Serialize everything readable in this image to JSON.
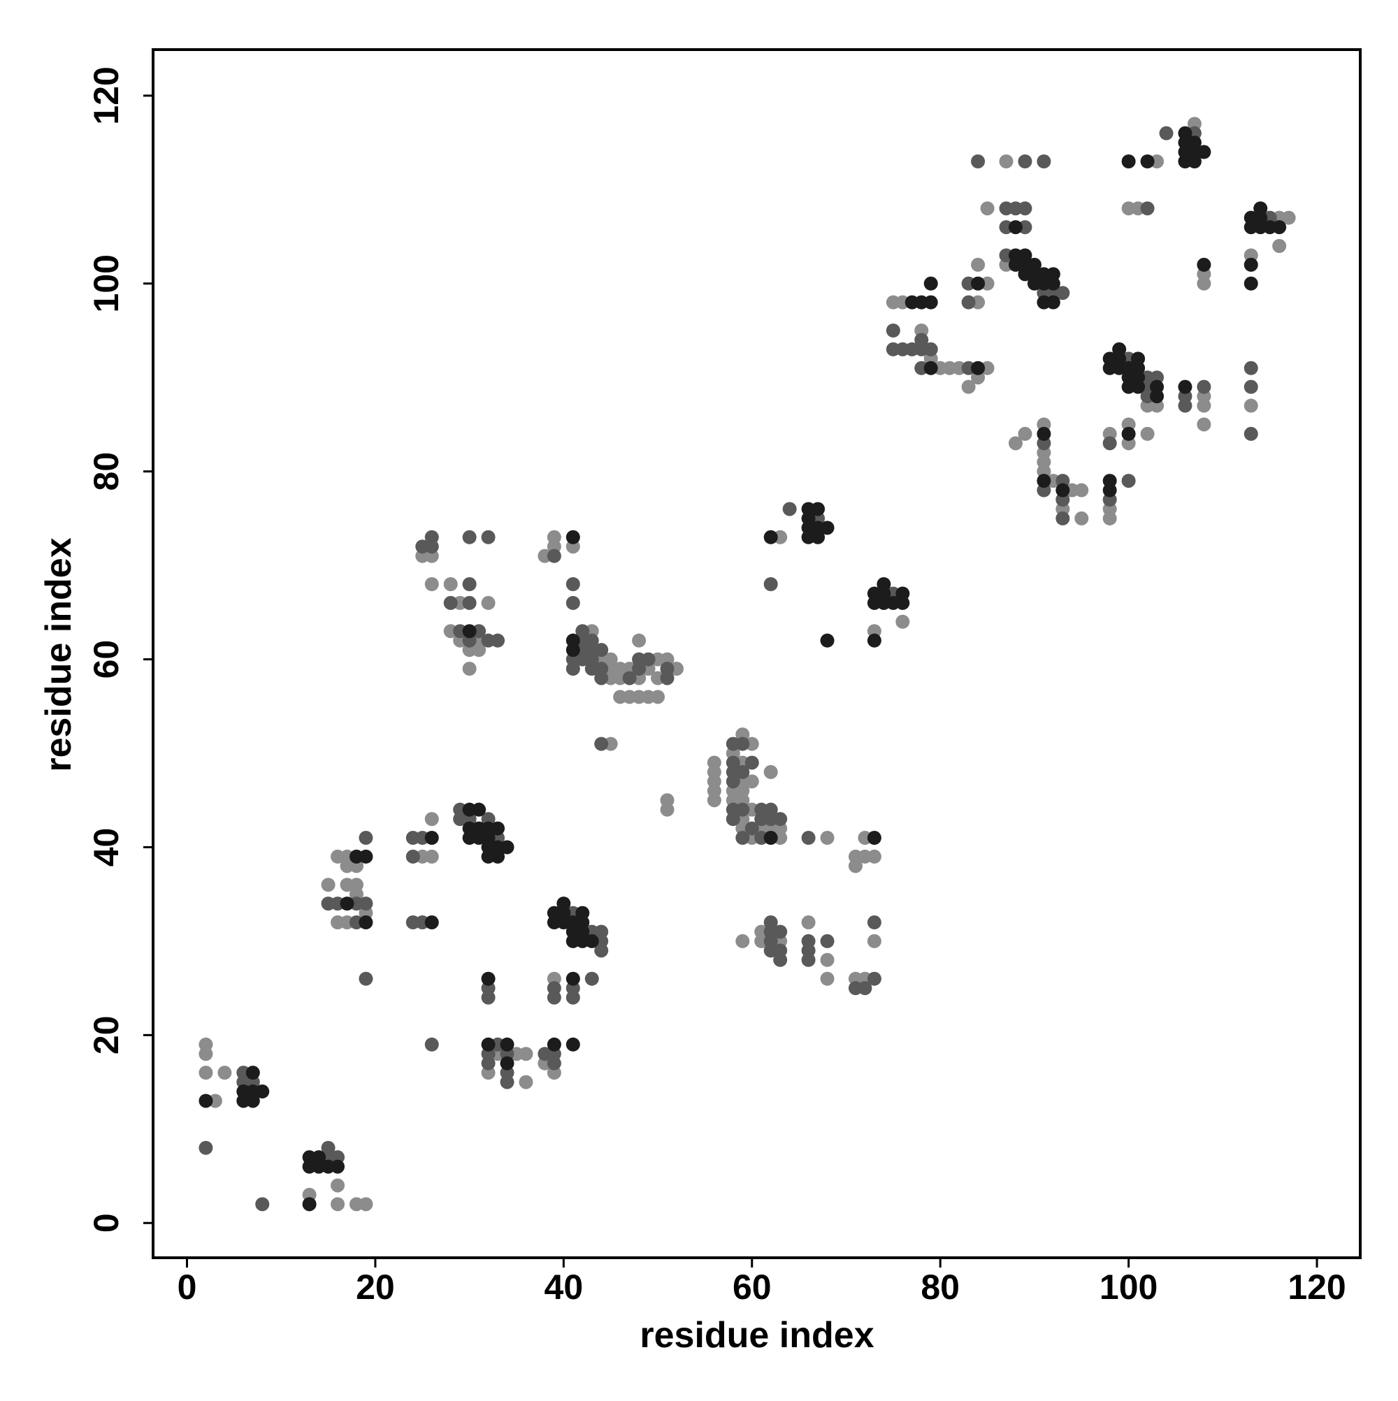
{
  "chart_data": {
    "type": "scatter",
    "x_label": "residue index",
    "y_label": "residue index",
    "xlim": [
      -3.6,
      124.6
    ],
    "ylim": [
      -3.7,
      124.9
    ],
    "xticks": [
      0,
      20,
      40,
      60,
      80,
      100,
      120
    ],
    "yticks": [
      0,
      20,
      40,
      60,
      80,
      100,
      120
    ],
    "series": [
      {
        "color": "#8c8c8c",
        "x": [
          2,
          2,
          2,
          3,
          4,
          13,
          16,
          16,
          18,
          19,
          15,
          16,
          16,
          17,
          17,
          17,
          17,
          18,
          18,
          18,
          19,
          25,
          26,
          26,
          32,
          33,
          35,
          36,
          36,
          38,
          39,
          39,
          25,
          26,
          26,
          28,
          28,
          29,
          29,
          30,
          30,
          31,
          31,
          32,
          38,
          39,
          39,
          41,
          43,
          44,
          45,
          45,
          45,
          46,
          46,
          46,
          47,
          47,
          48,
          48,
          48,
          49,
          49,
          50,
          50,
          50,
          51,
          52,
          45,
          51,
          51,
          56,
          56,
          56,
          56,
          56,
          58,
          58,
          58,
          59,
          59,
          59,
          59,
          59,
          59,
          59,
          60,
          60,
          60,
          60,
          61,
          62,
          62,
          63,
          63,
          68,
          72,
          71,
          71,
          72,
          73,
          59,
          61,
          61,
          63,
          66,
          68,
          68,
          71,
          72,
          73,
          63,
          73,
          76,
          75,
          76,
          78,
          79,
          80,
          81,
          82,
          83,
          84,
          84,
          84,
          85,
          85,
          85,
          87,
          87,
          88,
          89,
          91,
          91,
          91,
          91,
          92,
          93,
          94,
          95,
          95,
          98,
          98,
          98,
          100,
          100,
          102,
          102,
          103,
          108,
          108,
          108,
          100,
          101,
          103,
          107,
          108,
          108,
          113,
          113,
          116,
          116,
          117
        ],
        "values": [
          19,
          18,
          16,
          13,
          16,
          3,
          4,
          2,
          2,
          2,
          36,
          39,
          32,
          39,
          38,
          36,
          32,
          38,
          36,
          35,
          33,
          39,
          43,
          39,
          16,
          18,
          18,
          18,
          15,
          17,
          16,
          26,
          71,
          71,
          68,
          68,
          63,
          66,
          62,
          61,
          59,
          62,
          61,
          66,
          71,
          73,
          72,
          72,
          63,
          60,
          60,
          59,
          58,
          59,
          58,
          56,
          59,
          56,
          62,
          58,
          56,
          59,
          56,
          60,
          58,
          56,
          60,
          59,
          51,
          45,
          44,
          49,
          48,
          47,
          46,
          45,
          50,
          46,
          45,
          52,
          49,
          47,
          46,
          45,
          43,
          42,
          51,
          47,
          44,
          41,
          42,
          48,
          42,
          42,
          41,
          41,
          41,
          39,
          38,
          39,
          39,
          30,
          31,
          30,
          30,
          32,
          28,
          26,
          26,
          26,
          30,
          73,
          63,
          64,
          98,
          98,
          95,
          92,
          91,
          91,
          91,
          89,
          102,
          98,
          90,
          100,
          91,
          108,
          113,
          102,
          83,
          84,
          85,
          82,
          81,
          80,
          79,
          76,
          78,
          78,
          75,
          84,
          76,
          75,
          85,
          83,
          84,
          87,
          87,
          88,
          87,
          85,
          108,
          108,
          113,
          117,
          101,
          100,
          103,
          87,
          107,
          104,
          107
        ]
      },
      {
        "color": "#595959",
        "x": [
          2,
          6,
          6,
          7,
          8,
          15,
          15,
          16,
          15,
          16,
          18,
          18,
          19,
          19,
          19,
          24,
          24,
          24,
          25,
          25,
          26,
          29,
          29,
          30,
          32,
          33,
          32,
          32,
          32,
          32,
          33,
          34,
          34,
          34,
          38,
          39,
          39,
          39,
          39,
          41,
          43,
          44,
          44,
          44,
          41,
          41,
          43,
          25,
          26,
          26,
          28,
          29,
          30,
          30,
          30,
          30,
          31,
          32,
          32,
          33,
          39,
          41,
          41,
          41,
          41,
          42,
          42,
          42,
          42,
          43,
          43,
          43,
          43,
          44,
          44,
          44,
          47,
          48,
          48,
          49,
          51,
          51,
          44,
          58,
          58,
          58,
          58,
          58,
          58,
          59,
          59,
          59,
          59,
          60,
          60,
          61,
          61,
          61,
          62,
          62,
          63,
          66,
          62,
          62,
          62,
          62,
          63,
          63,
          63,
          66,
          66,
          66,
          68,
          71,
          72,
          73,
          73,
          62,
          64,
          67,
          75,
          75,
          75,
          76,
          77,
          78,
          78,
          78,
          79,
          83,
          83,
          83,
          84,
          87,
          87,
          87,
          88,
          89,
          89,
          89,
          91,
          91,
          92,
          93,
          91,
          91,
          93,
          93,
          93,
          98,
          98,
          100,
          100,
          102,
          102,
          102,
          103,
          106,
          106,
          108,
          102,
          104,
          107,
          113,
          113,
          113,
          115
        ],
        "values": [
          8,
          16,
          15,
          15,
          2,
          8,
          7,
          7,
          34,
          34,
          34,
          32,
          41,
          34,
          26,
          41,
          39,
          32,
          41,
          32,
          19,
          44,
          43,
          43,
          43,
          41,
          25,
          24,
          18,
          17,
          19,
          18,
          16,
          15,
          18,
          18,
          17,
          25,
          24,
          33,
          31,
          31,
          30,
          29,
          25,
          24,
          26,
          72,
          73,
          72,
          66,
          63,
          73,
          68,
          66,
          62,
          63,
          73,
          62,
          62,
          71,
          68,
          66,
          60,
          59,
          63,
          62,
          61,
          60,
          62,
          61,
          60,
          59,
          61,
          59,
          58,
          58,
          60,
          59,
          60,
          59,
          58,
          51,
          51,
          49,
          48,
          47,
          44,
          43,
          51,
          48,
          44,
          41,
          49,
          42,
          44,
          43,
          41,
          44,
          43,
          43,
          41,
          32,
          31,
          30,
          29,
          31,
          29,
          28,
          30,
          29,
          28,
          30,
          25,
          25,
          32,
          26,
          68,
          76,
          75,
          67,
          95,
          93,
          93,
          93,
          94,
          93,
          91,
          93,
          100,
          98,
          91,
          113,
          108,
          106,
          103,
          108,
          113,
          108,
          106,
          113,
          99,
          99,
          99,
          83,
          78,
          79,
          77,
          75,
          83,
          77,
          79,
          92,
          90,
          89,
          88,
          90,
          88,
          87,
          89,
          108,
          116,
          116,
          91,
          89,
          84,
          107
        ]
      },
      {
        "color": "#1c1c1c",
        "x": [
          2,
          6,
          6,
          7,
          7,
          7,
          8,
          13,
          13,
          14,
          14,
          15,
          16,
          13,
          17,
          18,
          19,
          19,
          26,
          26,
          30,
          30,
          30,
          31,
          31,
          31,
          32,
          32,
          32,
          32,
          33,
          33,
          33,
          34,
          32,
          32,
          34,
          34,
          39,
          39,
          39,
          40,
          40,
          40,
          41,
          41,
          41,
          42,
          42,
          42,
          42,
          43,
          41,
          41,
          30,
          41,
          41,
          41,
          62,
          73,
          62,
          66,
          66,
          66,
          66,
          67,
          67,
          67,
          68,
          68,
          73,
          73,
          73,
          74,
          74,
          74,
          75,
          76,
          76,
          77,
          78,
          79,
          79,
          79,
          84,
          84,
          88,
          88,
          88,
          89,
          89,
          89,
          90,
          90,
          90,
          91,
          91,
          92,
          92,
          92,
          91,
          91,
          91,
          93,
          98,
          98,
          100,
          98,
          98,
          99,
          99,
          99,
          100,
          100,
          100,
          101,
          101,
          101,
          101,
          103,
          103,
          106,
          100,
          102,
          106,
          106,
          106,
          106,
          107,
          107,
          107,
          108,
          108,
          113,
          113,
          113,
          113,
          114,
          114,
          114,
          115,
          116
        ],
        "values": [
          13,
          14,
          13,
          16,
          14,
          13,
          14,
          7,
          6,
          7,
          6,
          6,
          6,
          2,
          34,
          39,
          39,
          32,
          41,
          32,
          44,
          42,
          41,
          44,
          42,
          41,
          42,
          41,
          40,
          39,
          42,
          40,
          39,
          40,
          26,
          19,
          19,
          17,
          19,
          33,
          32,
          34,
          33,
          32,
          32,
          31,
          30,
          33,
          32,
          31,
          30,
          30,
          26,
          19,
          63,
          73,
          62,
          61,
          41,
          41,
          73,
          76,
          75,
          74,
          73,
          76,
          74,
          73,
          74,
          62,
          67,
          66,
          62,
          68,
          67,
          66,
          66,
          67,
          66,
          98,
          98,
          100,
          98,
          91,
          100,
          91,
          106,
          103,
          102,
          103,
          102,
          101,
          102,
          101,
          100,
          101,
          100,
          101,
          100,
          98,
          98,
          84,
          79,
          78,
          79,
          78,
          84,
          92,
          91,
          93,
          92,
          91,
          91,
          90,
          89,
          92,
          91,
          90,
          89,
          89,
          88,
          89,
          113,
          113,
          116,
          115,
          114,
          113,
          115,
          114,
          113,
          114,
          102,
          107,
          106,
          102,
          100,
          108,
          107,
          106,
          106,
          106
        ]
      }
    ]
  }
}
